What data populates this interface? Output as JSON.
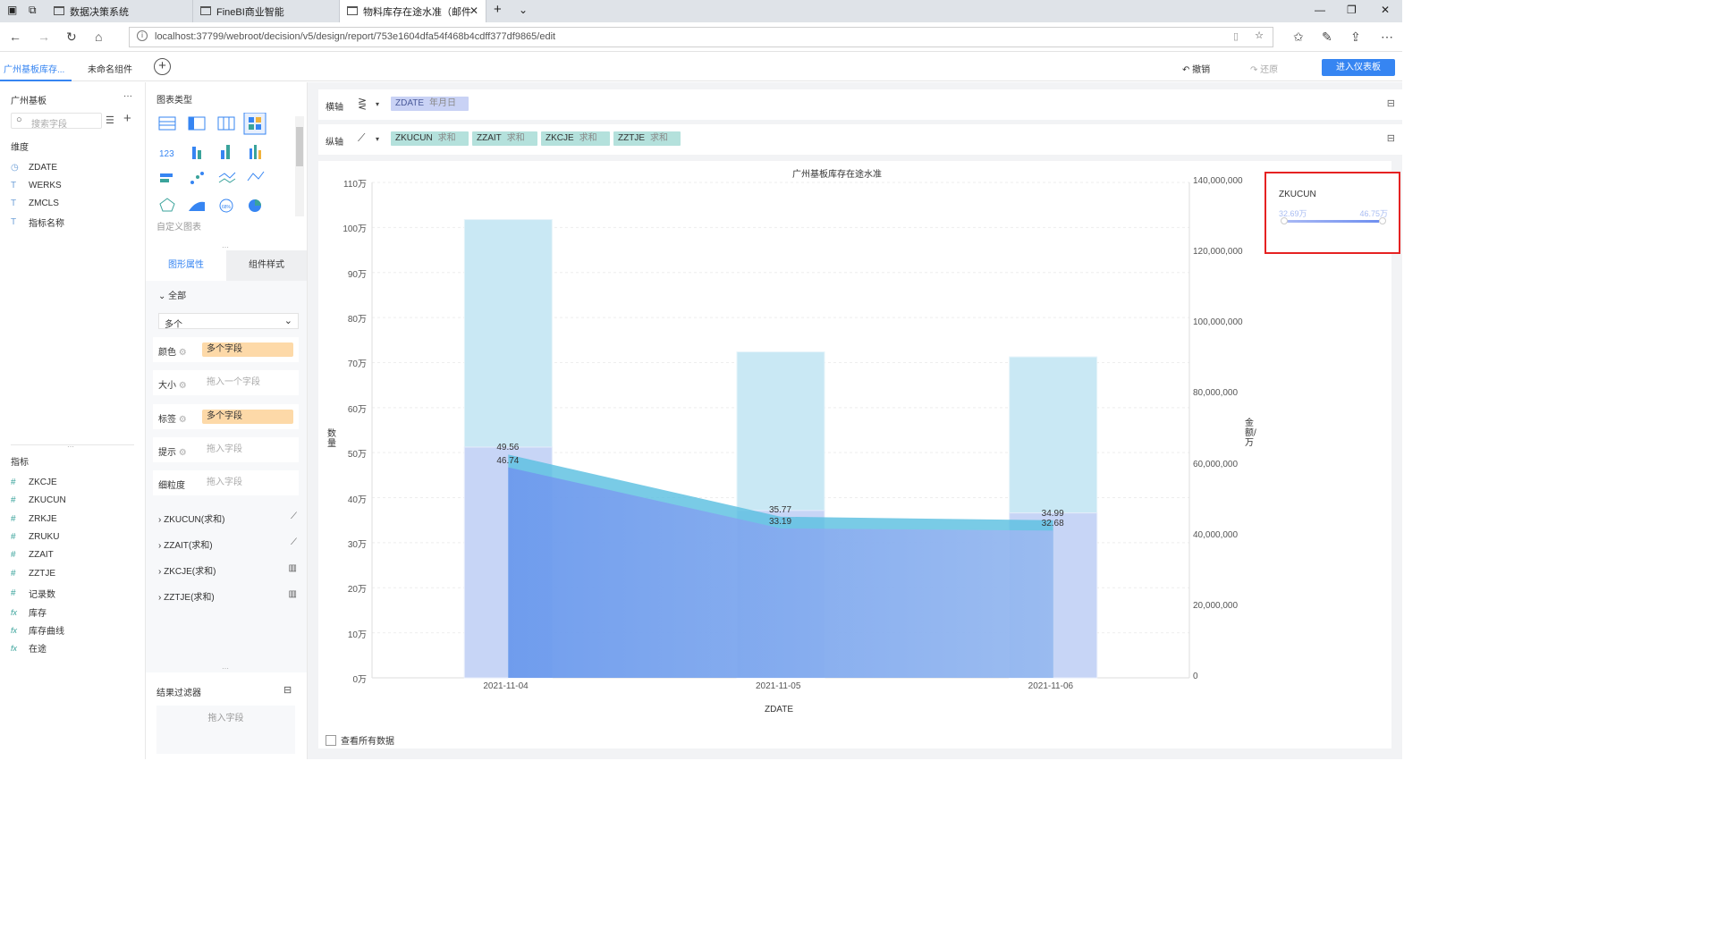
{
  "browser": {
    "tabs": [
      {
        "title": "数据决策系统"
      },
      {
        "title": "FineBI商业智能"
      },
      {
        "title": "物料库存在途水准（邮件"
      }
    ],
    "url": "localhost:37799/webroot/decision/v5/design/report/753e1604dfa54f468b4cdff377df9865/edit"
  },
  "header": {
    "tabs": [
      "广州基板库存...",
      "未命名组件"
    ],
    "undo": "撤销",
    "redo": "还原",
    "enter_dashboard": "进入仪表板"
  },
  "left_panel": {
    "dataset": "广州基板",
    "more": "···",
    "search_placeholder": "搜索字段",
    "dimension_title": "维度",
    "dimensions": [
      "ZDATE",
      "WERKS",
      "ZMCLS",
      "指标名称"
    ],
    "measure_title": "指标",
    "measures": [
      "ZKCJE",
      "ZKUCUN",
      "ZRKJE",
      "ZRUKU",
      "ZZAIT",
      "ZZTJE",
      "记录数"
    ],
    "calc_fields": [
      "库存",
      "库存曲线",
      "在途"
    ]
  },
  "mid_panel": {
    "chart_type_title": "图表类型",
    "custom_chart": "自定义图表",
    "tab_graph": "图形属性",
    "tab_style": "组件样式",
    "all_label": "全部",
    "multi_select": "多个",
    "props": [
      {
        "label": "颜色",
        "value": "多个字段"
      },
      {
        "label": "大小",
        "value": "拖入一个字段"
      },
      {
        "label": "标签",
        "value": "多个字段"
      },
      {
        "label": "提示",
        "value": "拖入字段"
      },
      {
        "label": "细粒度",
        "value": "拖入字段"
      }
    ],
    "series": [
      "ZKUCUN(求和)",
      "ZZAIT(求和)",
      "ZKCJE(求和)",
      "ZZTJE(求和)"
    ],
    "result_filter": "结果过滤器",
    "drag_field": "拖入字段"
  },
  "axes": {
    "x_label": "横轴",
    "y_label": "纵轴",
    "x_fields": [
      {
        "name": "ZDATE",
        "sub": "年月日"
      }
    ],
    "y_fields": [
      {
        "name": "ZKUCUN",
        "sub": "求和"
      },
      {
        "name": "ZZAIT",
        "sub": "求和"
      },
      {
        "name": "ZKCJE",
        "sub": "求和"
      },
      {
        "name": "ZZTJE",
        "sub": "求和"
      }
    ]
  },
  "chart_data": {
    "type": "bar",
    "title": "广州基板库存在途水准",
    "xlabel": "ZDATE",
    "ylabel": "数量",
    "y2label": "金额/万",
    "categories": [
      "2021-11-04",
      "2021-11-05",
      "2021-11-06"
    ],
    "y_ticks": [
      "0万",
      "10万",
      "20万",
      "30万",
      "40万",
      "50万",
      "60万",
      "70万",
      "80万",
      "90万",
      "100万",
      "110万"
    ],
    "y2_ticks": [
      "0",
      "20,000,000",
      "40,000,000",
      "60,000,000",
      "80,000,000",
      "100,000,000",
      "120,000,000",
      "140,000,000"
    ],
    "ylim": [
      0,
      110
    ],
    "y2lim": [
      0,
      140000000
    ],
    "series": [
      {
        "name": "ZKUCUN",
        "type": "area",
        "axis": "left",
        "values": [
          46.74,
          33.19,
          32.68
        ]
      },
      {
        "name": "ZZAIT",
        "type": "area",
        "axis": "left",
        "values": [
          49.56,
          35.77,
          34.99
        ]
      },
      {
        "name": "ZKCJE",
        "type": "bar",
        "axis": "right",
        "values": [
          65200000,
          47300000,
          46600000
        ]
      },
      {
        "name": "ZZTJE",
        "type": "bar",
        "axis": "right",
        "values": [
          129500000,
          92100000,
          90700000
        ]
      }
    ],
    "data_labels": [
      [
        "46.74",
        "33.19",
        "32.68"
      ],
      [
        "49.56",
        "35.77",
        "34.99"
      ]
    ],
    "legend": {
      "position": "top-right",
      "title": "ZKUCUN",
      "min": "32.69万",
      "max": "46.75万"
    },
    "colors": {
      "zkucun": "#6f8ff0",
      "zzait": "#5bbfe0",
      "zkcje_bar": "#c7d3f6",
      "zztje_bar": "#c9e8f4"
    }
  },
  "footer": {
    "view_all": "查看所有数据"
  }
}
